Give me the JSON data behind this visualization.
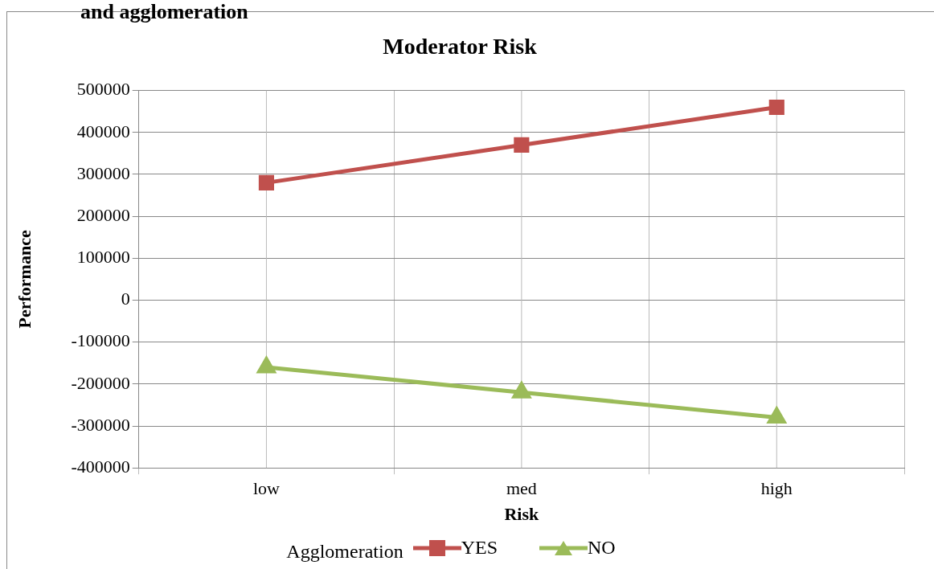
{
  "chart_data": {
    "type": "line",
    "title": "Moderator Risk",
    "xlabel": "Risk",
    "ylabel": "Performance",
    "legend_title": "Agglomeration",
    "annotations": [
      "and agglomeration"
    ],
    "categories": [
      "low",
      "med",
      "high"
    ],
    "series": [
      {
        "name": "YES",
        "color": "#c0504d",
        "marker": "square",
        "values": [
          280000,
          370000,
          460000
        ]
      },
      {
        "name": "NO",
        "color": "#9bbb59",
        "marker": "triangle",
        "values": [
          -160000,
          -220000,
          -280000
        ]
      }
    ],
    "ylim": [
      -400000,
      500000
    ],
    "yticks": [
      -400000,
      -300000,
      -200000,
      -100000,
      0,
      100000,
      200000,
      300000,
      400000,
      500000
    ],
    "grid": true,
    "legend": "bottom",
    "line_style": "solid"
  }
}
